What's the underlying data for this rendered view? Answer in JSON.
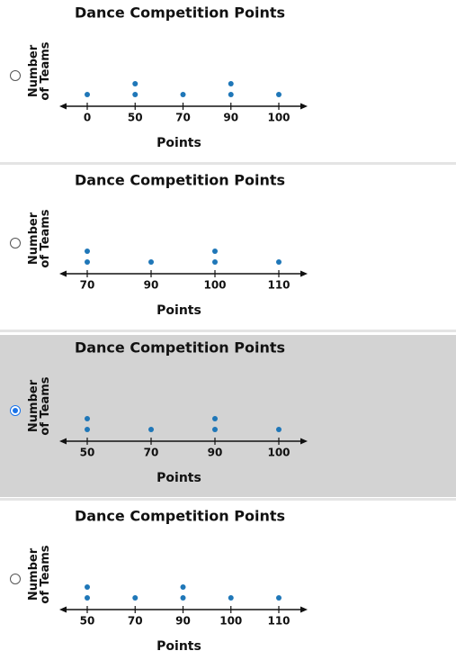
{
  "chart_data": [
    {
      "type": "dot",
      "title": "Dance Competition Points",
      "xlabel": "Points",
      "ylabel": "Number of Teams",
      "categories": [
        "0",
        "50",
        "70",
        "90",
        "100"
      ],
      "values": [
        1,
        2,
        1,
        2,
        1
      ],
      "color": "#1f77b8"
    },
    {
      "type": "dot",
      "title": "Dance Competition Points",
      "xlabel": "Points",
      "ylabel": "Number of Teams",
      "categories": [
        "70",
        "90",
        "100",
        "110"
      ],
      "values": [
        2,
        1,
        2,
        1
      ],
      "color": "#1f77b8"
    },
    {
      "type": "dot",
      "title": "Dance Competition Points",
      "xlabel": "Points",
      "ylabel": "Number of Teams",
      "categories": [
        "50",
        "70",
        "90",
        "100"
      ],
      "values": [
        2,
        1,
        2,
        1
      ],
      "color": "#1f77b8"
    },
    {
      "type": "dot",
      "title": "Dance Competition Points",
      "xlabel": "Points",
      "ylabel": "Number of Teams",
      "categories": [
        "50",
        "70",
        "90",
        "100",
        "110"
      ],
      "values": [
        2,
        1,
        2,
        1,
        1
      ],
      "color": "#1f77b8"
    }
  ],
  "selected": 2
}
